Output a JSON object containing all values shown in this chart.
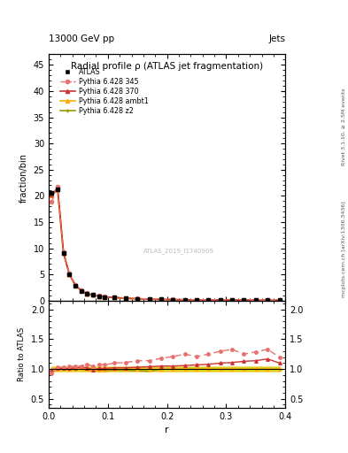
{
  "title": "Radial profile ρ (ATLAS jet fragmentation)",
  "header_left": "13000 GeV pp",
  "header_right": "Jets",
  "ylabel_main": "fraction/bin",
  "ylabel_ratio": "Ratio to ATLAS",
  "xlabel": "r",
  "watermark": "ATLAS_2019_I1740909",
  "right_label_top": "Rivet 3.1.10, ≥ 2.5M events",
  "right_label_bot": "mcplots.cern.ch [arXiv:1306.3436]",
  "ylim_main": [
    0,
    47
  ],
  "ylim_ratio": [
    0.35,
    2.15
  ],
  "xlim": [
    0.0,
    0.4
  ],
  "xticks": [
    0.0,
    0.1,
    0.2,
    0.3,
    0.4
  ],
  "yticks_main": [
    0,
    5,
    10,
    15,
    20,
    25,
    30,
    35,
    40,
    45
  ],
  "yticks_ratio": [
    0.5,
    1.0,
    1.5,
    2.0
  ],
  "r_values": [
    0.005,
    0.015,
    0.025,
    0.035,
    0.045,
    0.055,
    0.065,
    0.075,
    0.085,
    0.095,
    0.11,
    0.13,
    0.15,
    0.17,
    0.19,
    0.21,
    0.23,
    0.25,
    0.27,
    0.29,
    0.31,
    0.33,
    0.35,
    0.37,
    0.39
  ],
  "atlas_y": [
    20.5,
    21.2,
    9.0,
    5.0,
    2.9,
    1.9,
    1.3,
    1.1,
    0.85,
    0.72,
    0.6,
    0.45,
    0.35,
    0.28,
    0.22,
    0.19,
    0.16,
    0.14,
    0.12,
    0.1,
    0.09,
    0.08,
    0.07,
    0.06,
    0.05
  ],
  "py345_y": [
    18.8,
    21.8,
    9.3,
    5.2,
    3.05,
    2.0,
    1.4,
    1.15,
    0.92,
    0.77,
    0.66,
    0.5,
    0.4,
    0.32,
    0.26,
    0.23,
    0.2,
    0.17,
    0.15,
    0.13,
    0.12,
    0.1,
    0.09,
    0.08,
    0.06
  ],
  "py370_y": [
    20.2,
    21.5,
    9.1,
    5.05,
    2.95,
    1.95,
    1.32,
    1.09,
    0.86,
    0.73,
    0.61,
    0.46,
    0.36,
    0.29,
    0.23,
    0.2,
    0.17,
    0.15,
    0.13,
    0.11,
    0.1,
    0.09,
    0.08,
    0.07,
    0.055
  ],
  "pyambt1_y": [
    20.1,
    21.3,
    9.1,
    5.02,
    2.92,
    1.92,
    1.3,
    1.08,
    0.84,
    0.71,
    0.6,
    0.45,
    0.35,
    0.28,
    0.22,
    0.19,
    0.16,
    0.14,
    0.12,
    0.1,
    0.09,
    0.08,
    0.07,
    0.06,
    0.05
  ],
  "pyz2_y": [
    20.0,
    21.2,
    9.0,
    4.99,
    2.9,
    1.9,
    1.28,
    1.07,
    0.83,
    0.7,
    0.59,
    0.44,
    0.34,
    0.27,
    0.22,
    0.19,
    0.16,
    0.14,
    0.12,
    0.1,
    0.09,
    0.08,
    0.07,
    0.06,
    0.05
  ],
  "py345_ratio": [
    0.92,
    1.03,
    1.03,
    1.04,
    1.05,
    1.05,
    1.08,
    1.05,
    1.08,
    1.07,
    1.1,
    1.11,
    1.14,
    1.14,
    1.18,
    1.21,
    1.25,
    1.21,
    1.25,
    1.3,
    1.33,
    1.25,
    1.29,
    1.33,
    1.2
  ],
  "py370_ratio": [
    0.99,
    1.01,
    1.01,
    1.01,
    1.02,
    1.03,
    1.02,
    0.99,
    1.01,
    1.01,
    1.02,
    1.02,
    1.03,
    1.04,
    1.05,
    1.05,
    1.06,
    1.07,
    1.08,
    1.1,
    1.11,
    1.13,
    1.14,
    1.17,
    1.1
  ],
  "pyambt1_ratio": [
    0.98,
    1.0,
    1.01,
    1.0,
    1.01,
    1.01,
    1.0,
    0.98,
    0.99,
    0.99,
    1.0,
    1.0,
    1.0,
    1.0,
    1.0,
    1.0,
    1.0,
    1.0,
    1.0,
    1.0,
    1.0,
    1.0,
    1.0,
    1.0,
    1.0
  ],
  "pyz2_ratio": [
    0.98,
    1.0,
    1.0,
    1.0,
    1.0,
    1.0,
    0.985,
    0.975,
    0.977,
    0.972,
    0.983,
    0.978,
    0.971,
    0.964,
    1.0,
    1.0,
    1.0,
    1.0,
    1.0,
    1.0,
    1.0,
    1.0,
    1.0,
    1.0,
    1.0
  ],
  "color_atlas": "#000000",
  "color_py345": "#e87070",
  "color_py370": "#cc3333",
  "color_pyambt1": "#ffaa00",
  "color_pyz2": "#999900",
  "color_z2_band": "#cccc00",
  "color_ambt1_band": "#ffcc44",
  "bg_color": "#ffffff"
}
